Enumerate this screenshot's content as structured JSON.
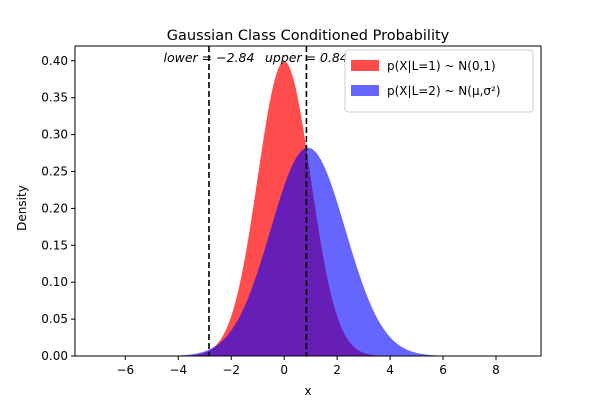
{
  "chart_data": {
    "type": "area",
    "title": "Gaussian Class Conditioned Probability",
    "xlabel": "x",
    "ylabel": "Density",
    "xlim": [
      -7.9,
      9.7
    ],
    "ylim": [
      0,
      0.42
    ],
    "xticks": [
      -6,
      -4,
      -2,
      0,
      2,
      4,
      6,
      8
    ],
    "xtick_labels": [
      "−6",
      "−4",
      "−2",
      "0",
      "2",
      "4",
      "6",
      "8"
    ],
    "yticks": [
      0.0,
      0.05,
      0.1,
      0.15,
      0.2,
      0.25,
      0.3,
      0.35,
      0.4
    ],
    "ytick_labels": [
      "0.00",
      "0.05",
      "0.10",
      "0.15",
      "0.20",
      "0.25",
      "0.30",
      "0.35",
      "0.40"
    ],
    "grid": false,
    "legend_position": "top-right",
    "series": [
      {
        "name": "p(X|L=1) ~ N(0,1)",
        "distribution": "normal",
        "mean": 0,
        "std": 1,
        "x_range": [
          -4,
          4
        ],
        "color": "#ff0000",
        "alpha": 0.7
      },
      {
        "name": "p(X|L=2) ~ N(μ,σ²)",
        "distribution": "normal",
        "mean": 0.9,
        "std": 1.414,
        "x_range": [
          -4.5,
          6
        ],
        "color": "#0000ff",
        "alpha": 0.6
      }
    ],
    "vlines": [
      {
        "x": -2.84,
        "label": "lower = −2.84",
        "style": "dashed",
        "color": "#000000"
      },
      {
        "x": 0.84,
        "label": "upper = 0.84",
        "style": "dashed",
        "color": "#000000"
      }
    ]
  }
}
